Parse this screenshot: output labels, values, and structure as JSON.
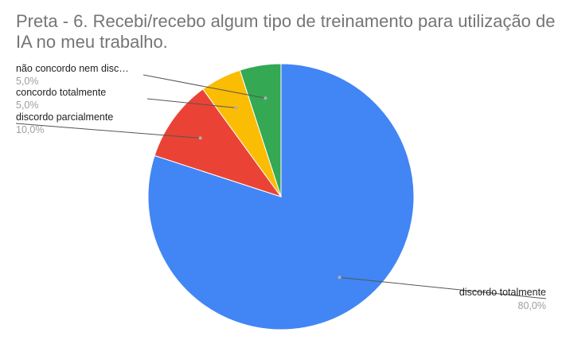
{
  "chart_data": {
    "type": "pie",
    "title": "Preta - 6. Recebi/recebo algum tipo de treinamento para utilização de IA no meu trabalho.",
    "slices": [
      {
        "label": "discordo totalmente",
        "value": 80.0,
        "value_label": "80,0%",
        "color": "#4285f4"
      },
      {
        "label": "discordo parcialmente",
        "value": 10.0,
        "value_label": "10,0%",
        "color": "#ea4335"
      },
      {
        "label": "concordo totalmente",
        "value": 5.0,
        "value_label": "5,0%",
        "color": "#fbbc04"
      },
      {
        "label": "não concordo nem disc…",
        "value": 5.0,
        "value_label": "5,0%",
        "color": "#34a853"
      }
    ],
    "start_angle_deg": 0,
    "direction": "clockwise",
    "label_placement": "outside-with-leader-lines"
  }
}
